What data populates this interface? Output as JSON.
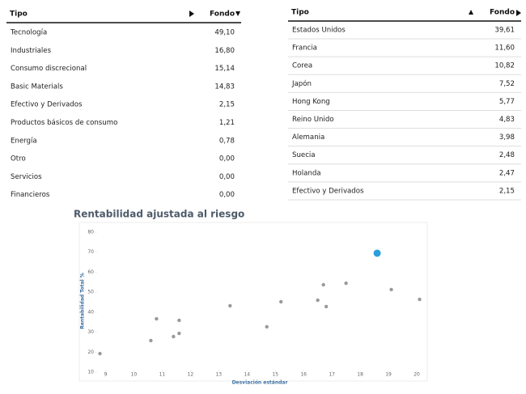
{
  "left_table": {
    "header": [
      "Tipo",
      "Fondo"
    ],
    "rows": [
      [
        "Tecnología",
        "49,10"
      ],
      [
        "Industriales",
        "16,80"
      ],
      [
        "Consumo discrecional",
        "15,14"
      ],
      [
        "Basic Materials",
        "14,83"
      ],
      [
        "Efectivo y Derivados",
        "2,15"
      ],
      [
        "Productos básicos de consumo",
        "1,21"
      ],
      [
        "Energía",
        "0,78"
      ],
      [
        "Otro",
        "0,00"
      ],
      [
        "Servicios",
        "0,00"
      ],
      [
        "Financieros",
        "0,00"
      ]
    ]
  },
  "right_table": {
    "header": [
      "Tipo",
      "Fondo"
    ],
    "rows": [
      [
        "Estados Unidos",
        "39,61"
      ],
      [
        "Francia",
        "11,60"
      ],
      [
        "Corea",
        "10,82"
      ],
      [
        "Japón",
        "7,52"
      ],
      [
        "Hong Kong",
        "5,77"
      ],
      [
        "Reino Unido",
        "4,83"
      ],
      [
        "Alemania",
        "3,98"
      ],
      [
        "Suecia",
        "2,48"
      ],
      [
        "Holanda",
        "2,47"
      ],
      [
        "Efectivo y Derivados",
        "2,15"
      ]
    ]
  },
  "chart_data": {
    "type": "scatter",
    "title": "Rentabilidad ajustada al riesgo",
    "xlabel": "Desviación estándar",
    "ylabel": "Rentabilidad Total %",
    "xlim": [
      8.7,
      20.2
    ],
    "ylim": [
      10,
      80
    ],
    "xticks": [
      9,
      10,
      11,
      12,
      13,
      14,
      15,
      16,
      17,
      18,
      19,
      20
    ],
    "yticks": [
      10,
      20,
      30,
      40,
      50,
      60,
      70,
      80
    ],
    "series": [
      {
        "color": "#9a9a9a",
        "marker_radius": 2.2,
        "x": [
          8.8,
          10.6,
          10.8,
          11.4,
          11.6,
          11.6,
          13.4,
          14.7,
          15.2,
          16.5,
          16.7,
          16.8,
          17.5,
          19.1,
          20.1
        ],
        "values": [
          19.3,
          25.8,
          36.7,
          27.8,
          35.9,
          29.4,
          43.2,
          32.7,
          45.2,
          46.0,
          53.7,
          42.8,
          54.5,
          51.3,
          46.4
        ]
      },
      {
        "color": "#2a9fdc",
        "marker_radius": 4.5,
        "x": [
          18.6
        ],
        "values": [
          69.5
        ]
      }
    ]
  }
}
